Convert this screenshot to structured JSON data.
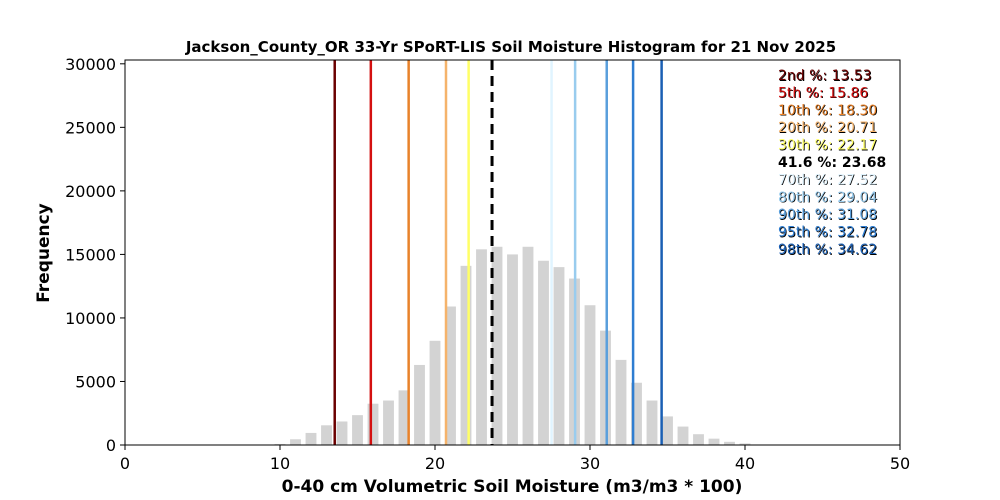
{
  "chart_data": {
    "type": "bar",
    "title": "Jackson_County_OR 33-Yr SPoRT-LIS Soil Moisture Histogram for 21 Nov 2025",
    "xlabel": "0-40 cm Volumetric Soil Moisture (m3/m3 * 100)",
    "ylabel": "Frequency",
    "xlim": [
      0,
      50
    ],
    "ylim": [
      0,
      30300
    ],
    "x_ticks": [
      "0",
      "10",
      "20",
      "30",
      "40",
      "50"
    ],
    "y_ticks": [
      "0",
      "5000",
      "10000",
      "15000",
      "20000",
      "25000",
      "30000"
    ],
    "grid": false,
    "bar_color": "#d3d3d3",
    "bars": {
      "x": [
        9.0,
        10.0,
        11.0,
        12.0,
        13.0,
        14.0,
        15.0,
        16.0,
        17.0,
        18.0,
        19.0,
        20.0,
        21.0,
        22.0,
        23.0,
        24.0,
        25.0,
        26.0,
        27.0,
        28.0,
        29.0,
        30.0,
        31.0,
        32.0,
        33.0,
        34.0,
        35.0,
        36.0,
        37.0,
        38.0,
        39.0,
        40.0
      ],
      "values": [
        20,
        80,
        450,
        950,
        1550,
        1850,
        2350,
        3250,
        3500,
        4300,
        6300,
        8200,
        10900,
        14100,
        15400,
        15600,
        15000,
        15600,
        14500,
        14000,
        13100,
        11000,
        9000,
        6700,
        4900,
        3500,
        2250,
        1450,
        850,
        500,
        250,
        120
      ]
    },
    "percentile_lines": [
      {
        "label": "2nd %: 13.53",
        "value": 13.53,
        "color": "#6b0000",
        "style": "solid"
      },
      {
        "label": "5th %: 15.86",
        "value": 15.86,
        "color": "#d41010",
        "style": "solid"
      },
      {
        "label": "10th %: 18.30",
        "value": 18.3,
        "color": "#e8822a",
        "style": "solid"
      },
      {
        "label": "20th %: 20.71",
        "value": 20.71,
        "color": "#f5b36b",
        "style": "solid"
      },
      {
        "label": "30th %: 22.17",
        "value": 22.17,
        "color": "#ffff66",
        "style": "solid"
      },
      {
        "label": "41.6 %: 23.68",
        "value": 23.68,
        "color": "#000000",
        "style": "dashed"
      },
      {
        "label": "70th %: 27.52",
        "value": 27.52,
        "color": "#e0f4ff",
        "style": "solid"
      },
      {
        "label": "80th %: 29.04",
        "value": 29.04,
        "color": "#99ccee",
        "style": "solid"
      },
      {
        "label": "90th %: 31.08",
        "value": 31.08,
        "color": "#5a9fdc",
        "style": "solid"
      },
      {
        "label": "95th %: 32.78",
        "value": 32.78,
        "color": "#2e7dd1",
        "style": "solid"
      },
      {
        "label": "98th %: 34.62",
        "value": 34.62,
        "color": "#1a5fb4",
        "style": "solid"
      }
    ],
    "legend_placement": "top-right"
  }
}
